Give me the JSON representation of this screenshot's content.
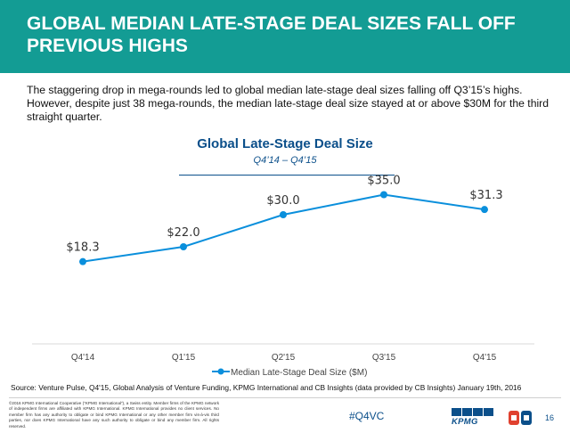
{
  "header": {
    "title": "GLOBAL MEDIAN LATE-STAGE DEAL SIZES FALL OFF PREVIOUS HIGHS"
  },
  "intro_text": "The staggering drop in mega-rounds led to global median late-stage deal sizes falling off Q3’15’s highs. However, despite just 38 mega-rounds, the median late-stage deal size stayed at or above $30M for the third straight quarter.",
  "chart_data": {
    "type": "line",
    "title": "Global Late-Stage Deal Size",
    "subtitle": "Q4’14 – Q4’15",
    "categories": [
      "Q4'14",
      "Q1'15",
      "Q2'15",
      "Q3'15",
      "Q4'15"
    ],
    "series": [
      {
        "name": "Median Late-Stage Deal Size ($M)",
        "values": [
          18.3,
          22.0,
          30.0,
          35.0,
          31.3
        ],
        "labels": [
          "$18.3",
          "$22.0",
          "$30.0",
          "$35.0",
          "$31.3"
        ]
      }
    ],
    "ylim": [
      0,
      40
    ],
    "xlabel": "",
    "ylabel": "",
    "grid": false,
    "legend": "bottom",
    "color": "#0a8fdc"
  },
  "footer": {
    "source": "Source: Venture Pulse, Q4'15, Global Analysis of Venture Funding, KPMG International and CB Insights (data provided by CB Insights) January 19th, 2016",
    "copyright": "©2016 KPMG International Cooperative (“KPMG International”), a Swiss entity. Member firms of the KPMG network of independent firms are affiliated with KPMG International. KPMG International provides no client services. No member firm has any authority to obligate or bind KPMG International or any other member firm vis-à-vis third parties, nor does KPMG International have any such authority to obligate or bind any member firm. All rights reserved.",
    "hashtag": "#Q4VC",
    "logo_text": "KPMG",
    "page_number": "16"
  }
}
